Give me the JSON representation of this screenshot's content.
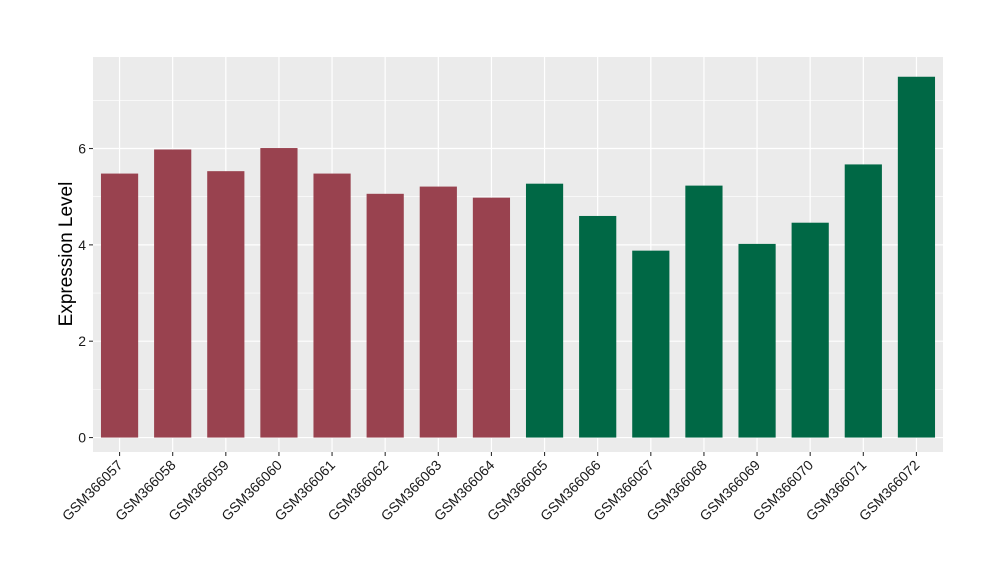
{
  "chart_data": {
    "type": "bar",
    "title": "",
    "xlabel": "",
    "ylabel": "Expression Level",
    "ylim": [
      -0.3,
      7.9
    ],
    "y_ticks": [
      0,
      2,
      4,
      6
    ],
    "grid": true,
    "legend": "none",
    "categories": [
      "GSM366057",
      "GSM366058",
      "GSM366059",
      "GSM366060",
      "GSM366061",
      "GSM366062",
      "GSM366063",
      "GSM366064",
      "GSM366065",
      "GSM366066",
      "GSM366067",
      "GSM366068",
      "GSM366069",
      "GSM366070",
      "GSM366071",
      "GSM366072"
    ],
    "values": [
      5.48,
      5.98,
      5.53,
      6.01,
      5.48,
      5.06,
      5.21,
      4.98,
      5.27,
      4.6,
      3.88,
      5.23,
      4.02,
      4.46,
      5.67,
      7.49
    ],
    "bar_colors": [
      "#99424f",
      "#99424f",
      "#99424f",
      "#99424f",
      "#99424f",
      "#99424f",
      "#99424f",
      "#99424f",
      "#006845",
      "#006845",
      "#006845",
      "#006845",
      "#006845",
      "#006845",
      "#006845",
      "#006845"
    ],
    "panel_background": "#ebebeb",
    "grid_color": "#ffffff"
  }
}
